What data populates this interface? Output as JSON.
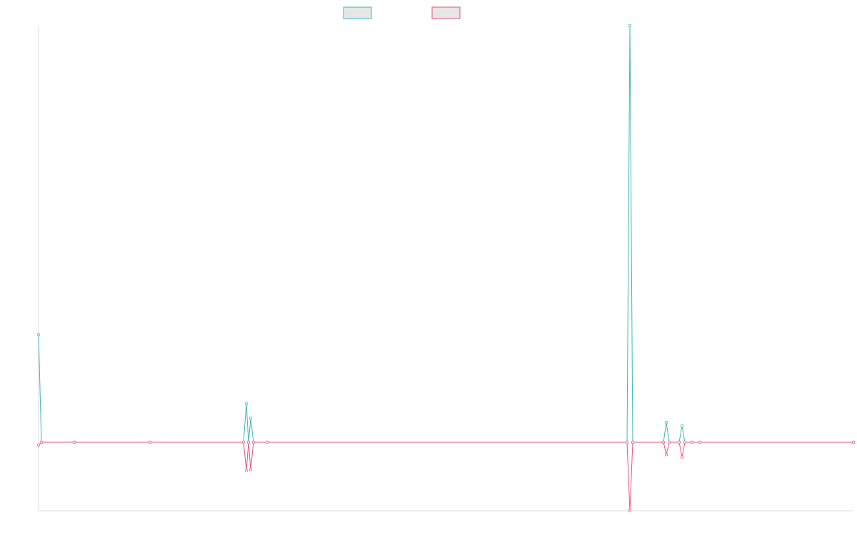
{
  "chart_data": {
    "type": "line",
    "x": [
      0,
      1,
      12.5,
      39,
      71.75,
      72.75,
      73.5,
      74.25,
      75.25,
      80,
      206,
      207,
      208,
      218.75,
      219.75,
      220.75,
      224.25,
      225.25,
      226.25,
      228.75,
      231.5,
      285.25
    ],
    "series": [
      {
        "color": "#3fb8b8",
        "values": [
          1.57,
          0,
          0,
          0,
          0,
          0.56,
          0,
          0.35,
          0,
          0,
          0,
          6.08,
          0,
          0,
          0.29,
          0,
          0,
          0.24,
          0,
          0,
          0,
          0
        ]
      },
      {
        "color": "#e8557c",
        "values": [
          -0.04,
          0,
          0,
          0,
          0,
          -0.41,
          0,
          -0.4,
          0,
          0,
          0,
          -1,
          0,
          0,
          -0.18,
          0,
          0,
          -0.22,
          0,
          0,
          0,
          0
        ]
      }
    ],
    "xlim": [
      0,
      285.25
    ],
    "ylim": [
      -1,
      6.08
    ]
  }
}
